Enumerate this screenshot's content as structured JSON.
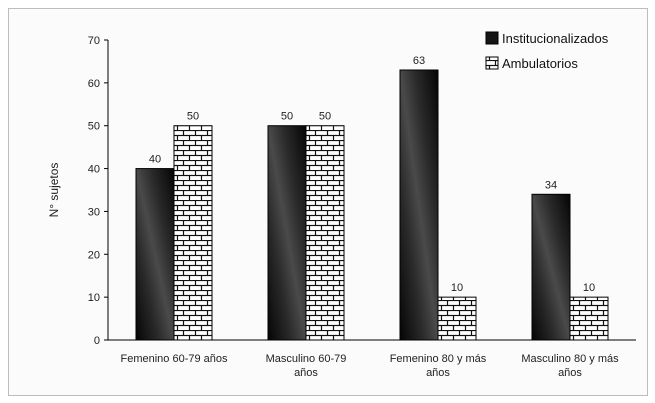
{
  "chart_data": {
    "type": "bar",
    "ylabel": "N° sujetos",
    "ylim": [
      0,
      70
    ],
    "yticks": [
      0,
      10,
      20,
      30,
      40,
      50,
      60,
      70
    ],
    "grid": false,
    "legend_position": "top-right",
    "categories": [
      [
        "Femenino 60-79 años"
      ],
      [
        "Masculino 60-79",
        "años"
      ],
      [
        "Femenino 80 y más",
        "años"
      ],
      [
        "Masculino 80 y más",
        "años"
      ]
    ],
    "series": [
      {
        "name": "Institucionalizados",
        "values": [
          40,
          50,
          63,
          34
        ],
        "color": "#151515",
        "pattern": "dark-speckle"
      },
      {
        "name": "Ambulatorios",
        "values": [
          50,
          50,
          10,
          10
        ],
        "color": "#ffffff",
        "pattern": "brick"
      }
    ]
  }
}
